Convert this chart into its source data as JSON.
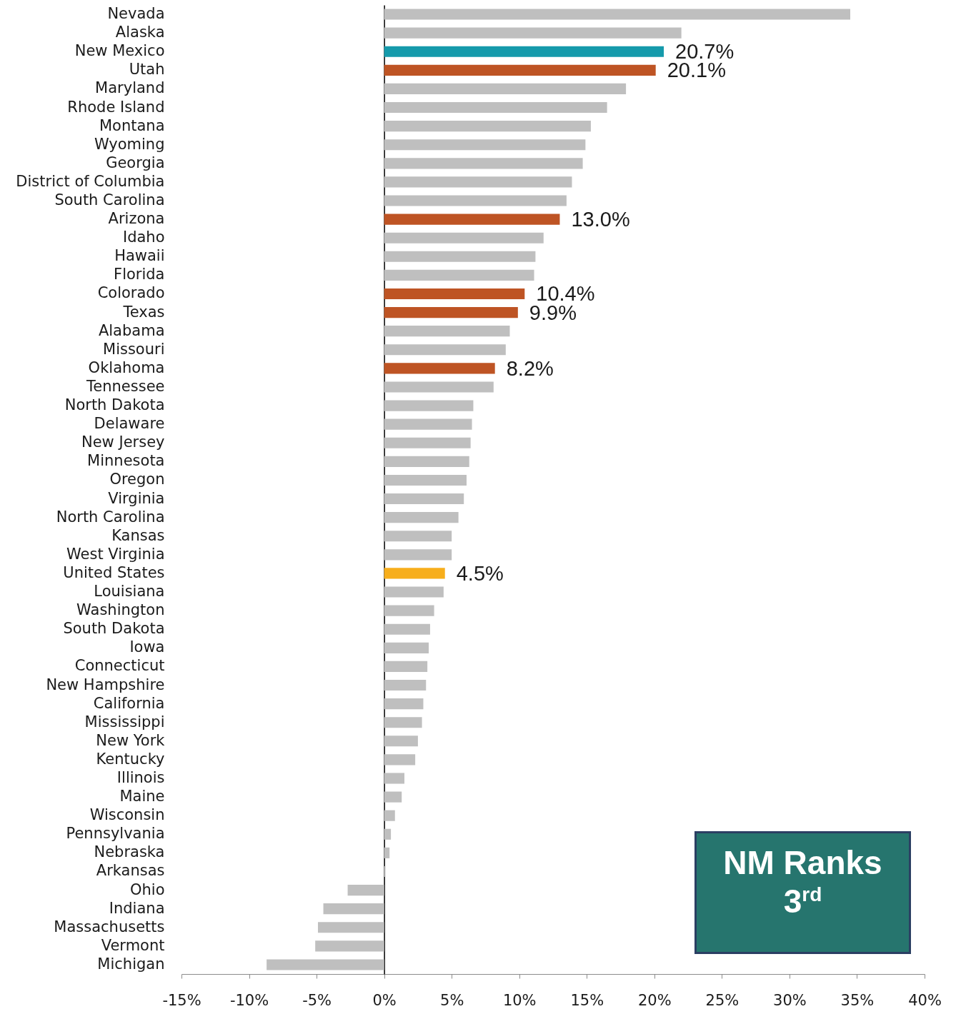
{
  "chart_data": {
    "type": "bar",
    "orientation": "horizontal",
    "categories": [
      "Nevada",
      "Alaska",
      "New Mexico",
      "Utah",
      "Maryland",
      "Rhode Island",
      "Montana",
      "Wyoming",
      "Georgia",
      "District of Columbia",
      "South Carolina",
      "Arizona",
      "Idaho",
      "Hawaii",
      "Florida",
      "Colorado",
      "Texas",
      "Alabama",
      "Missouri",
      "Oklahoma",
      "Tennessee",
      "North Dakota",
      "Delaware",
      "New Jersey",
      "Minnesota",
      "Oregon",
      "Virginia",
      "North Carolina",
      "Kansas",
      "West Virginia",
      "United States",
      "Louisiana",
      "Washington",
      "South Dakota",
      "Iowa",
      "Connecticut",
      "New Hampshire",
      "California",
      "Mississippi",
      "New York",
      "Kentucky",
      "Illinois",
      "Maine",
      "Wisconsin",
      "Pennsylvania",
      "Nebraska",
      "Arkansas",
      "Ohio",
      "Indiana",
      "Massachusetts",
      "Vermont",
      "Michigan"
    ],
    "values": [
      34.5,
      22.0,
      20.7,
      20.1,
      17.9,
      16.5,
      15.3,
      14.9,
      14.7,
      13.9,
      13.5,
      13.0,
      11.8,
      11.2,
      11.1,
      10.4,
      9.9,
      9.3,
      9.0,
      8.2,
      8.1,
      6.6,
      6.5,
      6.4,
      6.3,
      6.1,
      5.9,
      5.5,
      5.0,
      5.0,
      4.5,
      4.4,
      3.7,
      3.4,
      3.3,
      3.2,
      3.1,
      2.9,
      2.8,
      2.5,
      2.3,
      1.5,
      1.3,
      0.8,
      0.5,
      0.4,
      0.1,
      -2.7,
      -4.5,
      -4.9,
      -5.1,
      -8.7
    ],
    "colors": [
      "#bfbfbf",
      "#bfbfbf",
      "#159aab",
      "#be5424",
      "#bfbfbf",
      "#bfbfbf",
      "#bfbfbf",
      "#bfbfbf",
      "#bfbfbf",
      "#bfbfbf",
      "#bfbfbf",
      "#be5424",
      "#bfbfbf",
      "#bfbfbf",
      "#bfbfbf",
      "#be5424",
      "#be5424",
      "#bfbfbf",
      "#bfbfbf",
      "#be5424",
      "#bfbfbf",
      "#bfbfbf",
      "#bfbfbf",
      "#bfbfbf",
      "#bfbfbf",
      "#bfbfbf",
      "#bfbfbf",
      "#bfbfbf",
      "#bfbfbf",
      "#bfbfbf",
      "#f7ae1b",
      "#bfbfbf",
      "#bfbfbf",
      "#bfbfbf",
      "#bfbfbf",
      "#bfbfbf",
      "#bfbfbf",
      "#bfbfbf",
      "#bfbfbf",
      "#bfbfbf",
      "#bfbfbf",
      "#bfbfbf",
      "#bfbfbf",
      "#bfbfbf",
      "#bfbfbf",
      "#bfbfbf",
      "#bfbfbf",
      "#bfbfbf",
      "#bfbfbf",
      "#bfbfbf",
      "#bfbfbf",
      "#bfbfbf"
    ],
    "value_labels": [
      null,
      null,
      "20.7%",
      "20.1%",
      null,
      null,
      null,
      null,
      null,
      null,
      null,
      "13.0%",
      null,
      null,
      null,
      "10.4%",
      "9.9%",
      null,
      null,
      "8.2%",
      null,
      null,
      null,
      null,
      null,
      null,
      null,
      null,
      null,
      null,
      "4.5%",
      null,
      null,
      null,
      null,
      null,
      null,
      null,
      null,
      null,
      null,
      null,
      null,
      null,
      null,
      null,
      null,
      null,
      null,
      null,
      null,
      null
    ],
    "xlim": [
      -15,
      40
    ],
    "xticks": [
      {
        "value": -15,
        "label": "-15%"
      },
      {
        "value": -10,
        "label": "-10%"
      },
      {
        "value": -5,
        "label": "-5%"
      },
      {
        "value": 0,
        "label": "0%"
      },
      {
        "value": 5,
        "label": "5%"
      },
      {
        "value": 10,
        "label": "10%"
      },
      {
        "value": 15,
        "label": "15%"
      },
      {
        "value": 20,
        "label": "20%"
      },
      {
        "value": 25,
        "label": "25%"
      },
      {
        "value": 30,
        "label": "30%"
      },
      {
        "value": 35,
        "label": "35%"
      },
      {
        "value": 40,
        "label": "40%"
      }
    ],
    "annotations": [
      "NM Ranks 3$^{rd}$"
    ]
  }
}
